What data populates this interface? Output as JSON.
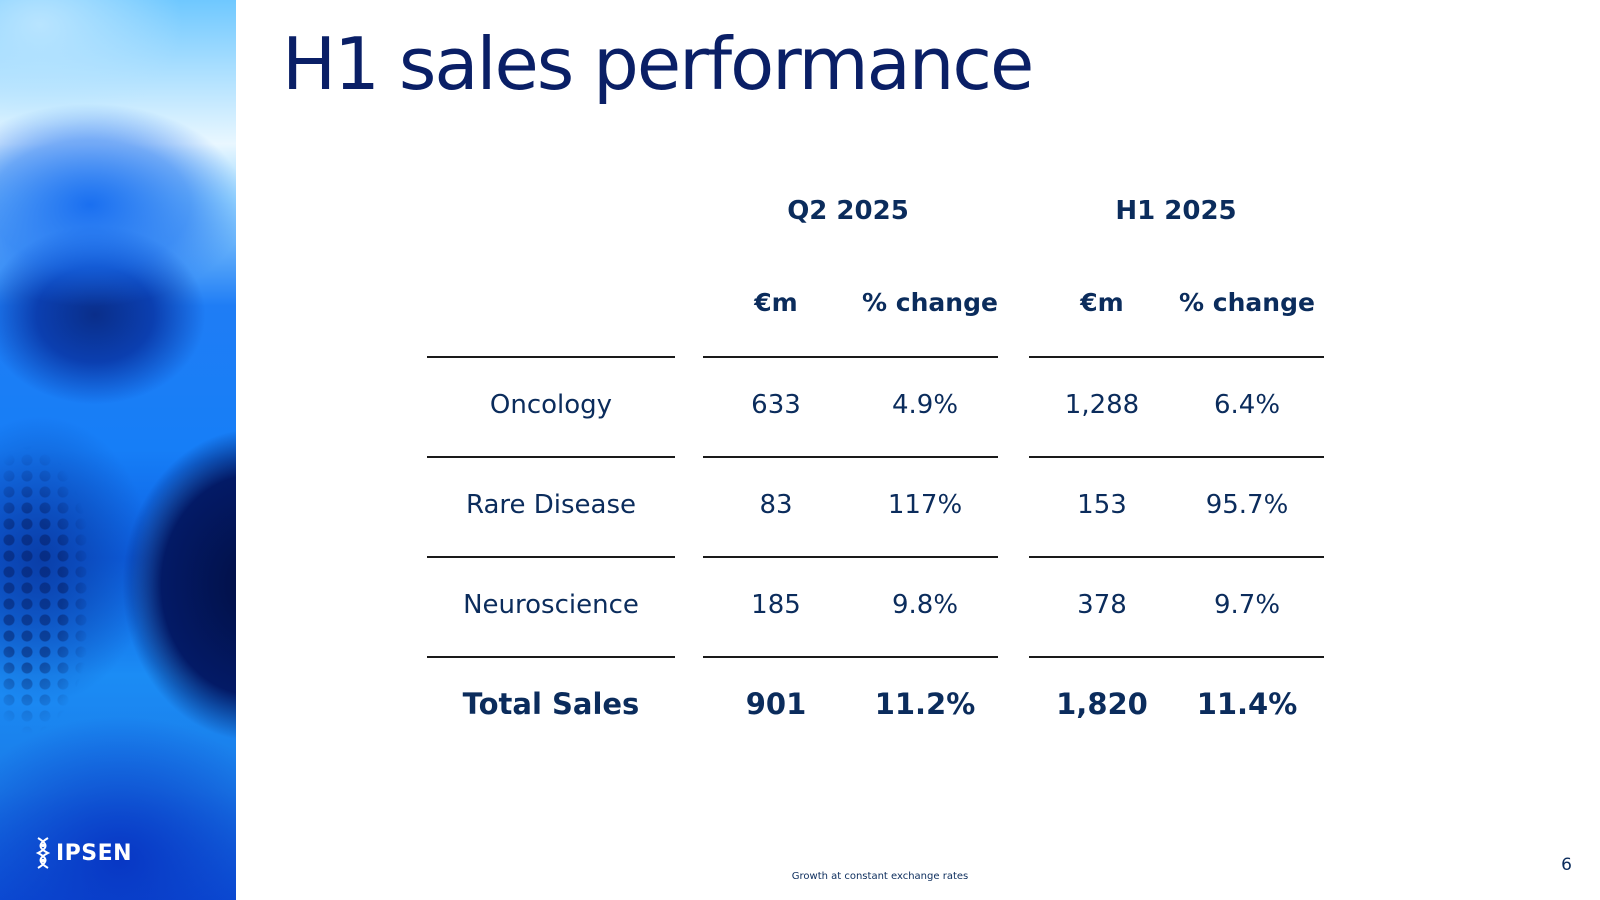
{
  "slide": {
    "title": "H1 sales performance",
    "footnote": "Growth at constant exchange rates",
    "page_number": "6",
    "logo_text": "IPSEN"
  },
  "table": {
    "groups": [
      "Q2 2025",
      "H1 2025"
    ],
    "subheaders": [
      "€m",
      "% change",
      "€m",
      "% change"
    ],
    "rows": [
      {
        "label": "Oncology",
        "values": [
          "633",
          "4.9%",
          "1,288",
          "6.4%"
        ]
      },
      {
        "label": "Rare Disease",
        "values": [
          "83",
          "117%",
          "153",
          "95.7%"
        ]
      },
      {
        "label": "Neuroscience",
        "values": [
          "185",
          "9.8%",
          "378",
          "9.7%"
        ]
      }
    ],
    "total": {
      "label": "Total Sales",
      "values": [
        "901",
        "11.2%",
        "1,820",
        "11.4%"
      ]
    }
  },
  "colors": {
    "title": "#0a1f66",
    "text": "#0b2c5c",
    "rule": "#1a1a1a"
  }
}
